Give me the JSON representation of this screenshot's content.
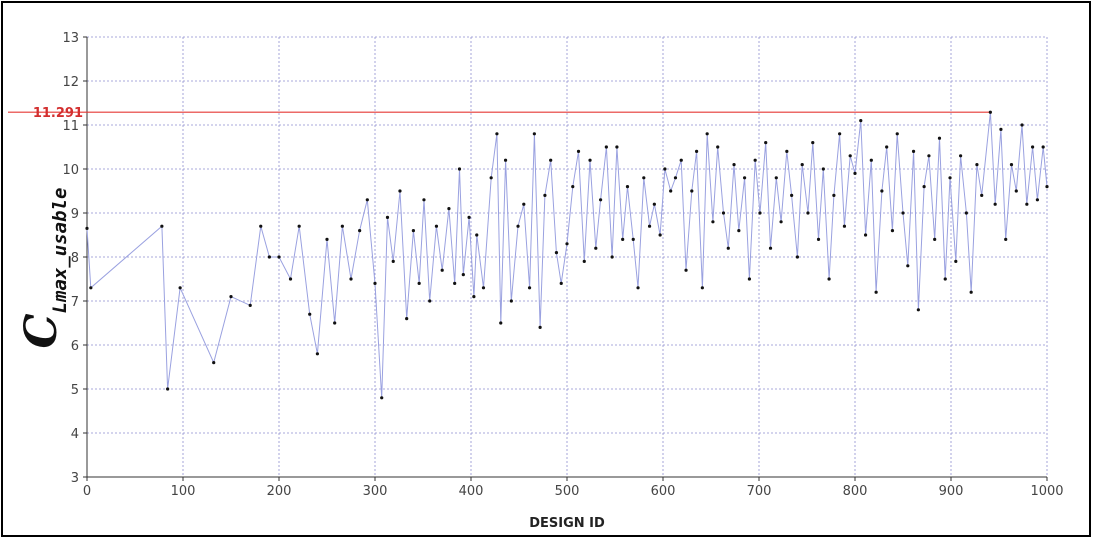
{
  "colors": {
    "series_line": "#9aa1e0",
    "series_point": "#111111",
    "reference": "#e53935",
    "reference_label": "#d32f2f",
    "grid": "#8f8fd0"
  },
  "chart_data": {
    "type": "line",
    "xlabel": "DESIGN ID",
    "ylabel": {
      "main": "C",
      "sub": "Lmax_usable"
    },
    "xlim": [
      0,
      1000
    ],
    "ylim": [
      3,
      13
    ],
    "xticks": [
      "0",
      "100",
      "200",
      "300",
      "400",
      "500",
      "600",
      "700",
      "800",
      "900",
      "1000"
    ],
    "yticks": [
      "3",
      "4",
      "5",
      "6",
      "7",
      "8",
      "9",
      "10",
      "11",
      "12",
      "13"
    ],
    "grid": true,
    "reference_line": {
      "y": 11.291,
      "label": "11.291"
    },
    "series": [
      {
        "x": [
          0,
          4,
          78,
          84,
          97,
          132,
          150,
          170,
          181,
          190,
          200,
          212,
          221,
          232,
          240,
          250,
          258,
          266,
          275,
          284,
          292,
          300,
          307,
          313,
          319,
          326,
          333,
          340,
          346,
          351,
          357,
          364,
          370,
          377,
          383,
          388,
          392,
          398,
          403,
          406,
          413,
          421,
          427,
          431,
          436,
          442,
          449,
          455,
          461,
          466,
          472,
          477,
          483,
          489,
          494,
          500,
          506,
          512,
          518,
          524,
          530,
          535,
          541,
          547,
          552,
          558,
          563,
          569,
          574,
          580,
          586,
          591,
          597,
          602,
          608,
          613,
          619,
          624,
          630,
          635,
          641,
          646,
          652,
          657,
          663,
          668,
          674,
          679,
          685,
          690,
          696,
          701,
          707,
          712,
          718,
          723,
          729,
          734,
          740,
          745,
          751,
          756,
          762,
          767,
          773,
          778,
          784,
          789,
          795,
          800,
          806,
          811,
          817,
          822,
          828,
          833,
          839,
          844,
          850,
          855,
          861,
          866,
          872,
          877,
          883,
          888,
          894,
          899,
          905,
          910,
          916,
          921,
          927,
          932,
          941,
          946,
          952,
          957,
          963,
          968,
          974,
          979,
          985,
          990,
          996,
          1000
        ],
        "y": [
          8.65,
          7.3,
          8.7,
          5.0,
          7.3,
          5.6,
          7.1,
          6.9,
          8.7,
          8.0,
          8.0,
          7.5,
          8.7,
          6.7,
          5.8,
          8.4,
          6.5,
          8.7,
          7.5,
          8.6,
          9.3,
          7.4,
          4.8,
          8.9,
          7.9,
          9.5,
          6.6,
          8.6,
          7.4,
          9.3,
          7.0,
          8.7,
          7.7,
          9.1,
          7.4,
          10.0,
          7.6,
          8.9,
          7.1,
          8.5,
          7.3,
          9.8,
          10.8,
          6.5,
          10.2,
          7.0,
          8.7,
          9.2,
          7.3,
          10.8,
          6.4,
          9.4,
          10.2,
          8.1,
          7.4,
          8.3,
          9.6,
          10.4,
          7.9,
          10.2,
          8.2,
          9.3,
          10.5,
          8.0,
          10.5,
          8.4,
          9.6,
          8.4,
          7.3,
          9.8,
          8.7,
          9.2,
          8.5,
          10.0,
          9.5,
          9.8,
          10.2,
          7.7,
          9.5,
          10.4,
          7.3,
          10.8,
          8.8,
          10.5,
          9.0,
          8.2,
          10.1,
          8.6,
          9.8,
          7.5,
          10.2,
          9.0,
          10.6,
          8.2,
          9.8,
          8.8,
          10.4,
          9.4,
          8.0,
          10.1,
          9.0,
          10.6,
          8.4,
          10.0,
          7.5,
          9.4,
          10.8,
          8.7,
          10.3,
          9.9,
          11.1,
          8.5,
          10.2,
          7.2,
          9.5,
          10.5,
          8.6,
          10.8,
          9.0,
          7.8,
          10.4,
          6.8,
          9.6,
          10.3,
          8.4,
          10.7,
          7.5,
          9.8,
          7.9,
          10.3,
          9.0,
          7.2,
          10.1,
          9.4,
          11.29,
          9.2,
          10.9,
          8.4,
          10.1,
          9.5,
          11.0,
          9.2,
          10.5,
          9.3,
          10.5,
          9.6
        ]
      }
    ]
  }
}
